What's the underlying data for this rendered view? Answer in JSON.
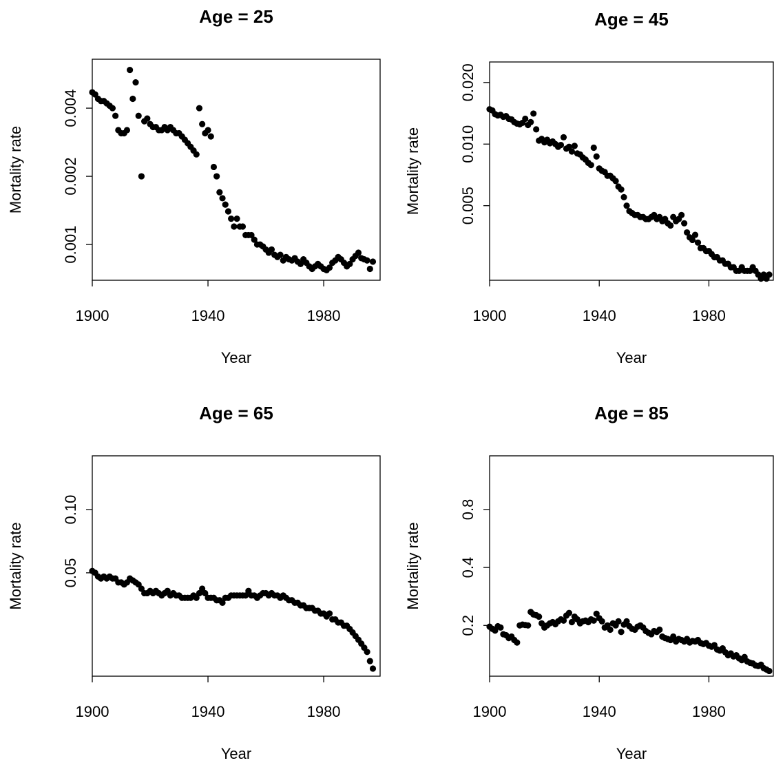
{
  "chart_data": [
    {
      "type": "scatter",
      "title": "Age =  25",
      "xlabel": "Year",
      "ylabel": "Mortality rate",
      "color": "#000000",
      "log_y": true,
      "xlim": [
        1900,
        1999.5
      ],
      "ylim": [
        0.000695,
        0.00658
      ],
      "xticks": [
        1900,
        1940,
        1980
      ],
      "yticks": [
        0.001,
        0.002,
        0.004
      ],
      "x": [
        1900,
        1901,
        1902,
        1903,
        1904,
        1905,
        1906,
        1907,
        1908,
        1909,
        1910,
        1911,
        1912,
        1913,
        1914,
        1915,
        1916,
        1917,
        1918,
        1919,
        1920,
        1921,
        1922,
        1923,
        1924,
        1925,
        1926,
        1927,
        1928,
        1929,
        1930,
        1931,
        1932,
        1933,
        1934,
        1935,
        1936,
        1937,
        1938,
        1939,
        1940,
        1941,
        1942,
        1943,
        1944,
        1945,
        1946,
        1947,
        1948,
        1949,
        1950,
        1951,
        1952,
        1953,
        1954,
        1955,
        1956,
        1957,
        1958,
        1959,
        1960,
        1961,
        1962,
        1963,
        1964,
        1965,
        1966,
        1967,
        1968,
        1969,
        1970,
        1971,
        1972,
        1973,
        1974,
        1975,
        1976,
        1977,
        1978,
        1979,
        1980,
        1981,
        1982,
        1983,
        1984,
        1985,
        1986,
        1987,
        1988,
        1989,
        1990,
        1991,
        1992,
        1993,
        1994,
        1995,
        1996,
        1997
      ],
      "values": [
        0.0047,
        0.0046,
        0.0044,
        0.0043,
        0.0043,
        0.0042,
        0.0041,
        0.004,
        0.0037,
        0.0032,
        0.0031,
        0.0031,
        0.0032,
        0.0059,
        0.0044,
        0.0052,
        0.0037,
        0.002,
        0.0035,
        0.0036,
        0.0034,
        0.0033,
        0.0033,
        0.0032,
        0.0032,
        0.0033,
        0.0032,
        0.0033,
        0.0032,
        0.0031,
        0.0031,
        0.003,
        0.0029,
        0.0028,
        0.0027,
        0.0026,
        0.0025,
        0.004,
        0.0034,
        0.0031,
        0.0032,
        0.003,
        0.0022,
        0.002,
        0.0017,
        0.0016,
        0.0015,
        0.0014,
        0.0013,
        0.0012,
        0.0013,
        0.0012,
        0.0012,
        0.0011,
        0.0011,
        0.0011,
        0.00105,
        0.001,
        0.001,
        0.00098,
        0.00095,
        0.00092,
        0.00095,
        0.0009,
        0.00088,
        0.0009,
        0.00085,
        0.00088,
        0.00086,
        0.00085,
        0.00087,
        0.00084,
        0.00082,
        0.00086,
        0.00083,
        0.0008,
        0.00078,
        0.0008,
        0.00082,
        0.0008,
        0.00078,
        0.00077,
        0.00079,
        0.00083,
        0.00085,
        0.00088,
        0.00086,
        0.00083,
        0.0008,
        0.00082,
        0.00086,
        0.00089,
        0.00092,
        0.00087,
        0.00086,
        0.00085,
        0.00078,
        0.00084
      ]
    },
    {
      "type": "scatter",
      "title": "Age =  45",
      "xlabel": "Year",
      "ylabel": "Mortality rate",
      "color": "#000000",
      "log_y": true,
      "xlim": [
        1900,
        2003.5
      ],
      "ylim": [
        0.00216,
        0.0252
      ],
      "xticks": [
        1900,
        1940,
        1980
      ],
      "yticks": [
        0.005,
        {
          "value": 0.01,
          "label": "0.010"
        },
        {
          "value": 0.02,
          "label": "0.020"
        }
      ],
      "x": [
        1900,
        1901,
        1902,
        1903,
        1904,
        1905,
        1906,
        1907,
        1908,
        1909,
        1910,
        1911,
        1912,
        1913,
        1914,
        1915,
        1916,
        1917,
        1918,
        1919,
        1920,
        1921,
        1922,
        1923,
        1924,
        1925,
        1926,
        1927,
        1928,
        1929,
        1930,
        1931,
        1932,
        1933,
        1934,
        1935,
        1936,
        1937,
        1938,
        1939,
        1940,
        1941,
        1942,
        1943,
        1944,
        1945,
        1946,
        1947,
        1948,
        1949,
        1950,
        1951,
        1952,
        1953,
        1954,
        1955,
        1956,
        1957,
        1958,
        1959,
        1960,
        1961,
        1962,
        1963,
        1964,
        1965,
        1966,
        1967,
        1968,
        1969,
        1970,
        1971,
        1972,
        1973,
        1974,
        1975,
        1976,
        1977,
        1978,
        1979,
        1980,
        1981,
        1982,
        1983,
        1984,
        1985,
        1986,
        1987,
        1988,
        1989,
        1990,
        1991,
        1992,
        1993,
        1994,
        1995,
        1996,
        1997,
        1998,
        1999,
        2000,
        2001,
        2002
      ],
      "values": [
        0.0148,
        0.0146,
        0.014,
        0.0138,
        0.0139,
        0.0136,
        0.0137,
        0.0133,
        0.0132,
        0.0128,
        0.0126,
        0.0125,
        0.0127,
        0.0133,
        0.0124,
        0.0128,
        0.0141,
        0.0118,
        0.0104,
        0.0106,
        0.0102,
        0.0105,
        0.0101,
        0.0103,
        0.01,
        0.0097,
        0.0099,
        0.0108,
        0.0095,
        0.0097,
        0.0092,
        0.0098,
        0.009,
        0.0089,
        0.0086,
        0.0084,
        0.0081,
        0.0079,
        0.0096,
        0.0087,
        0.0076,
        0.0074,
        0.0073,
        0.007,
        0.007,
        0.0068,
        0.0066,
        0.0062,
        0.006,
        0.0055,
        0.005,
        0.0047,
        0.0046,
        0.0045,
        0.0045,
        0.0044,
        0.0044,
        0.0043,
        0.0043,
        0.0044,
        0.0045,
        0.0043,
        0.0044,
        0.0042,
        0.0043,
        0.0041,
        0.004,
        0.0044,
        0.0042,
        0.0043,
        0.0045,
        0.0041,
        0.0037,
        0.0035,
        0.0034,
        0.0036,
        0.0033,
        0.0031,
        0.0031,
        0.003,
        0.003,
        0.0029,
        0.0028,
        0.0028,
        0.0027,
        0.0027,
        0.0026,
        0.0026,
        0.0025,
        0.0025,
        0.0024,
        0.0024,
        0.0025,
        0.0024,
        0.0024,
        0.0024,
        0.0025,
        0.0024,
        0.0023,
        0.0022,
        0.0023,
        0.0022,
        0.0023
      ]
    },
    {
      "type": "scatter",
      "title": "Age =  65",
      "xlabel": "Year",
      "ylabel": "Mortality rate",
      "color": "#000000",
      "log_y": true,
      "xlim": [
        1900,
        1999.5
      ],
      "ylim": [
        0.0161,
        0.1803
      ],
      "xticks": [
        1900,
        1940,
        1980
      ],
      "yticks": [
        0.05,
        {
          "value": 0.1,
          "label": "0.10"
        }
      ],
      "x": [
        1900,
        1901,
        1902,
        1903,
        1904,
        1905,
        1906,
        1907,
        1908,
        1909,
        1910,
        1911,
        1912,
        1913,
        1914,
        1915,
        1916,
        1917,
        1918,
        1919,
        1920,
        1921,
        1922,
        1923,
        1924,
        1925,
        1926,
        1927,
        1928,
        1929,
        1930,
        1931,
        1932,
        1933,
        1934,
        1935,
        1936,
        1937,
        1938,
        1939,
        1940,
        1941,
        1942,
        1943,
        1944,
        1945,
        1946,
        1947,
        1948,
        1949,
        1950,
        1951,
        1952,
        1953,
        1954,
        1955,
        1956,
        1957,
        1958,
        1959,
        1960,
        1961,
        1962,
        1963,
        1964,
        1965,
        1966,
        1967,
        1968,
        1969,
        1970,
        1971,
        1972,
        1973,
        1974,
        1975,
        1976,
        1977,
        1978,
        1979,
        1980,
        1981,
        1982,
        1983,
        1984,
        1985,
        1986,
        1987,
        1988,
        1989,
        1990,
        1991,
        1992,
        1993,
        1994,
        1995,
        1996,
        1997
      ],
      "values": [
        0.051,
        0.05,
        0.048,
        0.047,
        0.048,
        0.047,
        0.048,
        0.047,
        0.047,
        0.045,
        0.045,
        0.044,
        0.045,
        0.047,
        0.046,
        0.045,
        0.044,
        0.042,
        0.04,
        0.04,
        0.041,
        0.04,
        0.041,
        0.04,
        0.039,
        0.04,
        0.041,
        0.039,
        0.04,
        0.039,
        0.039,
        0.038,
        0.038,
        0.038,
        0.038,
        0.039,
        0.038,
        0.04,
        0.042,
        0.04,
        0.038,
        0.038,
        0.038,
        0.037,
        0.037,
        0.036,
        0.038,
        0.038,
        0.039,
        0.039,
        0.039,
        0.039,
        0.039,
        0.039,
        0.041,
        0.039,
        0.039,
        0.038,
        0.039,
        0.04,
        0.04,
        0.039,
        0.04,
        0.039,
        0.039,
        0.038,
        0.039,
        0.038,
        0.037,
        0.037,
        0.036,
        0.036,
        0.035,
        0.035,
        0.034,
        0.034,
        0.034,
        0.033,
        0.033,
        0.032,
        0.032,
        0.031,
        0.032,
        0.03,
        0.03,
        0.029,
        0.029,
        0.028,
        0.028,
        0.027,
        0.026,
        0.025,
        0.024,
        0.023,
        0.022,
        0.021,
        0.019,
        0.0175
      ]
    },
    {
      "type": "scatter",
      "title": "Age =  85",
      "xlabel": "Year",
      "ylabel": "Mortality rate",
      "color": "#000000",
      "log_y": true,
      "xlim": [
        1900,
        2003.5
      ],
      "ylim": [
        0.109,
        1.52
      ],
      "xticks": [
        1900,
        1940,
        1980
      ],
      "yticks": [
        0.2,
        0.4,
        0.8
      ],
      "x": [
        1900,
        1901,
        1902,
        1903,
        1904,
        1905,
        1906,
        1907,
        1908,
        1909,
        1910,
        1911,
        1912,
        1913,
        1914,
        1915,
        1916,
        1917,
        1918,
        1919,
        1920,
        1921,
        1922,
        1923,
        1924,
        1925,
        1926,
        1927,
        1928,
        1929,
        1930,
        1931,
        1932,
        1933,
        1934,
        1935,
        1936,
        1937,
        1938,
        1939,
        1940,
        1941,
        1942,
        1943,
        1944,
        1945,
        1946,
        1947,
        1948,
        1949,
        1950,
        1951,
        1952,
        1953,
        1954,
        1955,
        1956,
        1957,
        1958,
        1959,
        1960,
        1961,
        1962,
        1963,
        1964,
        1965,
        1966,
        1967,
        1968,
        1969,
        1970,
        1971,
        1972,
        1973,
        1974,
        1975,
        1976,
        1977,
        1978,
        1979,
        1980,
        1981,
        1982,
        1983,
        1984,
        1985,
        1986,
        1987,
        1988,
        1989,
        1990,
        1991,
        1992,
        1993,
        1994,
        1995,
        1996,
        1997,
        1998,
        1999,
        2000,
        2001,
        2002
      ],
      "values": [
        0.197,
        0.192,
        0.188,
        0.198,
        0.195,
        0.18,
        0.178,
        0.172,
        0.175,
        0.168,
        0.163,
        0.2,
        0.202,
        0.201,
        0.2,
        0.235,
        0.228,
        0.226,
        0.222,
        0.205,
        0.195,
        0.2,
        0.205,
        0.208,
        0.203,
        0.21,
        0.215,
        0.212,
        0.225,
        0.232,
        0.208,
        0.222,
        0.215,
        0.205,
        0.21,
        0.212,
        0.208,
        0.215,
        0.212,
        0.23,
        0.218,
        0.21,
        0.195,
        0.2,
        0.19,
        0.205,
        0.2,
        0.21,
        0.185,
        0.202,
        0.21,
        0.198,
        0.192,
        0.19,
        0.197,
        0.2,
        0.195,
        0.187,
        0.183,
        0.18,
        0.187,
        0.185,
        0.19,
        0.175,
        0.172,
        0.17,
        0.168,
        0.175,
        0.165,
        0.17,
        0.168,
        0.165,
        0.17,
        0.163,
        0.166,
        0.165,
        0.168,
        0.162,
        0.16,
        0.162,
        0.157,
        0.155,
        0.158,
        0.15,
        0.148,
        0.152,
        0.145,
        0.14,
        0.143,
        0.138,
        0.14,
        0.135,
        0.132,
        0.137,
        0.13,
        0.128,
        0.127,
        0.124,
        0.123,
        0.125,
        0.12,
        0.118,
        0.116
      ]
    }
  ]
}
